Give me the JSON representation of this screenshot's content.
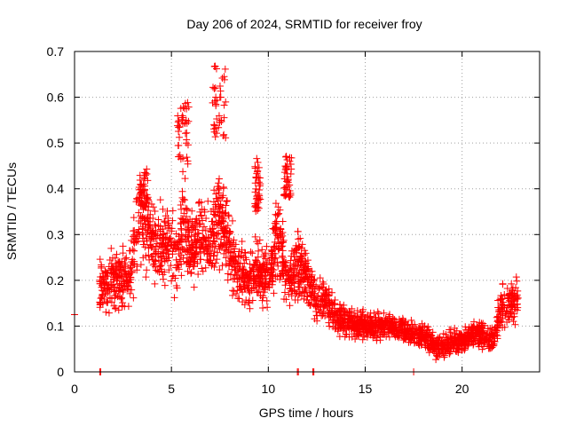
{
  "chart_data": {
    "type": "scatter",
    "title": "Day 206 of 2024, SRMTID for receiver froy",
    "xlabel": "GPS time / hours",
    "ylabel": "SRMTID / TECUs",
    "xlim": [
      0,
      24
    ],
    "ylim": [
      0,
      0.7
    ],
    "xticks": [
      0,
      5,
      10,
      15,
      20
    ],
    "xtick_labels": [
      "0",
      "5",
      "10",
      "15",
      "20"
    ],
    "yticks": [
      0,
      0.1,
      0.2,
      0.3,
      0.4,
      0.5,
      0.6,
      0.7
    ],
    "ytick_labels": [
      "0",
      "0.1",
      "0.2",
      "0.3",
      "0.4",
      "0.5",
      "0.6",
      "0.7"
    ],
    "grid": true,
    "marker": "plus",
    "series": [
      {
        "name": "SRMTID",
        "color": "#ff0000",
        "x": [
          0.0,
          1.3,
          1.35,
          11.5,
          11.55,
          12.3,
          12.35,
          17.5
        ],
        "y": [
          0.125,
          0.0,
          0.0,
          0.0,
          0.0,
          0.0,
          0.0,
          0.0
        ]
      }
    ],
    "trend": [
      [
        1.3,
        0.19
      ],
      [
        2.0,
        0.2
      ],
      [
        2.7,
        0.21
      ],
      [
        3.0,
        0.23
      ],
      [
        3.4,
        0.35
      ],
      [
        3.8,
        0.3
      ],
      [
        4.3,
        0.27
      ],
      [
        4.8,
        0.29
      ],
      [
        5.3,
        0.25
      ],
      [
        5.6,
        0.35
      ],
      [
        6.0,
        0.26
      ],
      [
        6.5,
        0.3
      ],
      [
        7.0,
        0.27
      ],
      [
        7.5,
        0.35
      ],
      [
        8.0,
        0.27
      ],
      [
        8.5,
        0.22
      ],
      [
        9.0,
        0.2
      ],
      [
        9.5,
        0.22
      ],
      [
        10.0,
        0.2
      ],
      [
        10.5,
        0.3
      ],
      [
        11.0,
        0.19
      ],
      [
        11.5,
        0.23
      ],
      [
        12.0,
        0.2
      ],
      [
        12.5,
        0.16
      ],
      [
        13.0,
        0.15
      ],
      [
        13.5,
        0.12
      ],
      [
        14.0,
        0.11
      ],
      [
        15.0,
        0.1
      ],
      [
        16.0,
        0.1
      ],
      [
        17.0,
        0.09
      ],
      [
        18.0,
        0.08
      ],
      [
        18.8,
        0.05
      ],
      [
        19.5,
        0.07
      ],
      [
        20.0,
        0.065
      ],
      [
        20.5,
        0.08
      ],
      [
        21.0,
        0.08
      ],
      [
        21.6,
        0.07
      ],
      [
        22.0,
        0.14
      ],
      [
        22.5,
        0.15
      ],
      [
        22.9,
        0.16
      ]
    ],
    "spikes": [
      {
        "x": [
          5.3,
          5.9
        ],
        "y": [
          0.45,
          0.6
        ]
      },
      {
        "x": [
          7.1,
          7.8
        ],
        "y": [
          0.5,
          0.67
        ]
      },
      {
        "x": [
          9.3,
          9.6
        ],
        "y": [
          0.35,
          0.47
        ]
      },
      {
        "x": [
          10.8,
          11.2
        ],
        "y": [
          0.38,
          0.48
        ]
      },
      {
        "x": [
          3.3,
          3.8
        ],
        "y": [
          0.36,
          0.45
        ]
      }
    ],
    "point_count": 2600
  }
}
